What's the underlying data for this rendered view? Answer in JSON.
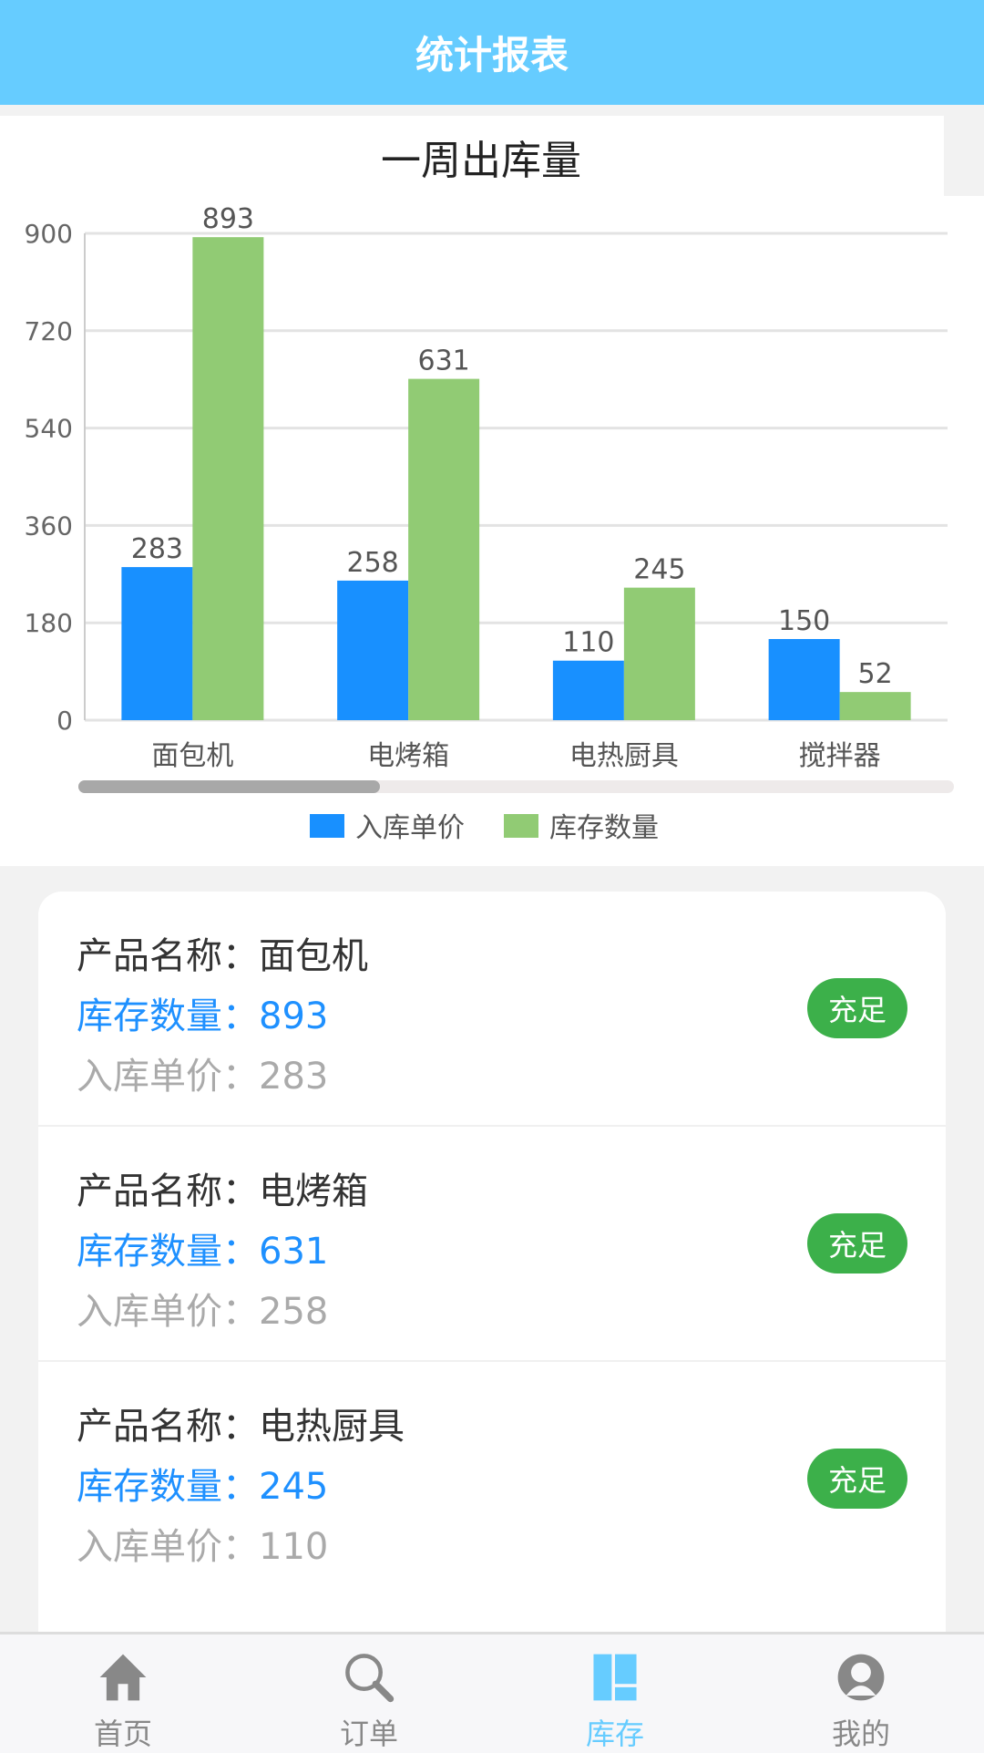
{
  "header": {
    "title": "统计报表"
  },
  "chart_data": {
    "type": "bar",
    "title": "一周出库量",
    "categories": [
      "面包机",
      "电烤箱",
      "电热厨具",
      "搅拌器"
    ],
    "series": [
      {
        "name": "入库单价",
        "values": [
          283,
          258,
          110,
          150
        ],
        "color": "#1890ff"
      },
      {
        "name": "库存数量",
        "values": [
          893,
          631,
          245,
          52
        ],
        "color": "#91cb74"
      }
    ],
    "ylim": [
      0,
      900
    ],
    "yticks": [
      0,
      180,
      360,
      540,
      720,
      900
    ],
    "grid": true,
    "legend": "bottom",
    "scrollbar_position": 0
  },
  "list": {
    "labels": {
      "name": "产品名称：",
      "stock": "库存数量：",
      "price": "入库单价："
    },
    "items": [
      {
        "name": "面包机",
        "stock": "893",
        "price": "283",
        "status": "充足"
      },
      {
        "name": "电烤箱",
        "stock": "631",
        "price": "258",
        "status": "充足"
      },
      {
        "name": "电热厨具",
        "stock": "245",
        "price": "110",
        "status": "充足"
      }
    ]
  },
  "tabbar": {
    "items": [
      {
        "label": "首页",
        "icon": "home-icon"
      },
      {
        "label": "订单",
        "icon": "search-icon"
      },
      {
        "label": "库存",
        "icon": "grid-icon",
        "active": true
      },
      {
        "label": "我的",
        "icon": "user-icon"
      }
    ]
  }
}
